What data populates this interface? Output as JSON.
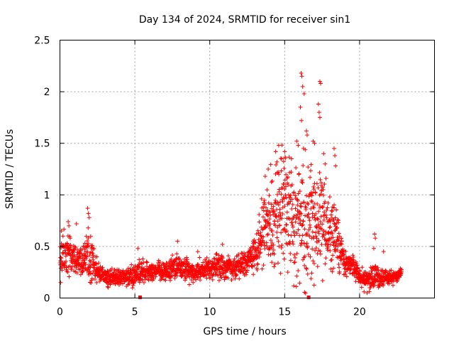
{
  "chart_data": {
    "type": "scatter",
    "title": "Day 134 of 2024, SRMTID for receiver sin1",
    "xlabel": "GPS time / hours",
    "ylabel": "SRMTID / TECUs",
    "xlim": [
      0,
      25
    ],
    "ylim": [
      0,
      2.5
    ],
    "xticks": [
      0,
      5,
      10,
      15,
      20
    ],
    "xtick_labels": [
      "0",
      "5",
      "10",
      "15",
      "20"
    ],
    "yticks": [
      0,
      0.5,
      1,
      1.5,
      2,
      2.5
    ],
    "ytick_labels": [
      "0",
      "0.5",
      "1",
      "1.5",
      "2",
      "2.5"
    ],
    "grid": true,
    "marker": "plus",
    "color": "#ff0000",
    "series": [
      {
        "name": "sin1",
        "envelope": {
          "t": [
            0,
            0.5,
            1,
            1.5,
            1.9,
            2.5,
            3,
            4,
            5,
            5.5,
            6,
            7,
            7.8,
            8.5,
            9,
            10,
            10.8,
            11.5,
            12.5,
            13,
            13.5,
            14,
            14.5,
            15,
            15.5,
            16,
            16.5,
            17,
            17.5,
            18,
            18.5,
            19,
            19.5,
            20,
            20.5,
            21,
            21.5,
            22,
            22.5,
            22.8
          ],
          "mean": [
            0.38,
            0.42,
            0.36,
            0.34,
            0.42,
            0.25,
            0.2,
            0.2,
            0.22,
            0.25,
            0.27,
            0.25,
            0.3,
            0.28,
            0.25,
            0.28,
            0.32,
            0.28,
            0.35,
            0.45,
            0.6,
            0.75,
            0.8,
            0.85,
            0.75,
            0.7,
            0.7,
            0.65,
            0.75,
            0.65,
            0.55,
            0.35,
            0.32,
            0.2,
            0.18,
            0.22,
            0.18,
            0.2,
            0.22,
            0.25
          ],
          "spread": [
            0.14,
            0.16,
            0.1,
            0.1,
            0.22,
            0.07,
            0.06,
            0.06,
            0.08,
            0.09,
            0.07,
            0.06,
            0.1,
            0.08,
            0.07,
            0.08,
            0.1,
            0.07,
            0.09,
            0.14,
            0.24,
            0.32,
            0.38,
            0.4,
            0.35,
            0.42,
            0.45,
            0.38,
            0.35,
            0.3,
            0.22,
            0.08,
            0.07,
            0.07,
            0.06,
            0.09,
            0.05,
            0.05,
            0.04,
            0.03
          ]
        },
        "outliers": [
          [
            16.1,
            2.18
          ],
          [
            16.15,
            2.15
          ],
          [
            16.2,
            2.05
          ],
          [
            16.3,
            1.98
          ],
          [
            16.05,
            1.85
          ],
          [
            16.12,
            1.72
          ],
          [
            16.45,
            1.62
          ],
          [
            17.35,
            2.1
          ],
          [
            17.4,
            2.08
          ],
          [
            17.25,
            1.88
          ],
          [
            17.3,
            1.8
          ],
          [
            17.35,
            1.75
          ],
          [
            16.9,
            1.52
          ],
          [
            17.0,
            1.5
          ],
          [
            14.6,
            1.48
          ],
          [
            14.4,
            1.42
          ],
          [
            15.8,
            1.52
          ],
          [
            15.9,
            1.48
          ],
          [
            16.5,
            1.58
          ],
          [
            17.6,
            1.4
          ],
          [
            17.7,
            1.3
          ],
          [
            18.3,
            1.45
          ],
          [
            18.35,
            1.38
          ],
          [
            18.4,
            1.28
          ],
          [
            15.0,
            1.42
          ],
          [
            14.8,
            1.35
          ],
          [
            13.7,
            1.18
          ],
          [
            13.9,
            1.25
          ],
          [
            1.85,
            0.87
          ],
          [
            1.9,
            0.82
          ],
          [
            1.95,
            0.78
          ],
          [
            1.88,
            0.68
          ],
          [
            0.55,
            0.74
          ],
          [
            0.6,
            0.7
          ],
          [
            1.1,
            0.72
          ],
          [
            0.1,
            0.65
          ],
          [
            0.2,
            0.6
          ],
          [
            21.0,
            0.62
          ],
          [
            21.05,
            0.58
          ],
          [
            20.95,
            0.48
          ],
          [
            21.6,
            0.45
          ],
          [
            7.85,
            0.55
          ],
          [
            10.85,
            0.52
          ],
          [
            12.9,
            0.55
          ],
          [
            5.2,
            0.48
          ],
          [
            9.2,
            0.45
          ],
          [
            0.05,
            0.15
          ],
          [
            20.3,
            0.06
          ],
          [
            20.5,
            0.05
          ]
        ]
      }
    ],
    "axis_markers": [
      5.35,
      16.6
    ]
  }
}
